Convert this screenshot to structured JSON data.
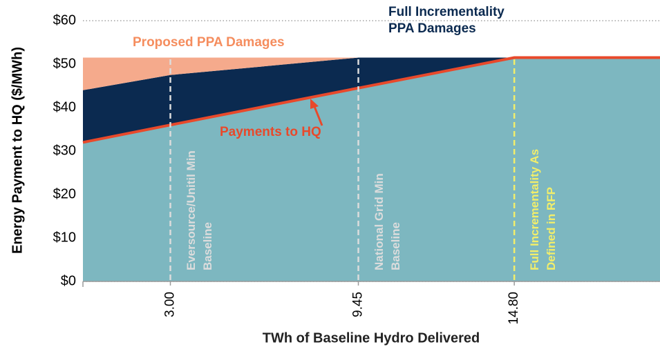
{
  "chart_data": {
    "type": "stacked_area",
    "x_label": "TWh of Baseline Hydro Delivered",
    "y_label": "Energy Payment to HQ ($/MWh)",
    "x": [
      0,
      3,
      9.45,
      14.8,
      19.8
    ],
    "xlim": [
      0,
      19.8
    ],
    "xticks": [
      {
        "value": 3,
        "label": "3.00"
      },
      {
        "value": 9.45,
        "label": "9.45"
      },
      {
        "value": 14.8,
        "label": "14.80"
      }
    ],
    "ylim": [
      0,
      60
    ],
    "yticks": [
      {
        "value": 0,
        "label": "$0"
      },
      {
        "value": 10,
        "label": "$10"
      },
      {
        "value": 20,
        "label": "$20"
      },
      {
        "value": 30,
        "label": "$30"
      },
      {
        "value": 40,
        "label": "$40"
      },
      {
        "value": 50,
        "label": "$50"
      },
      {
        "value": 60,
        "label": "$60"
      }
    ],
    "grid": true,
    "series": [
      {
        "name": "Payments to HQ",
        "color": "#7db7c0",
        "line_color": "#e8492b",
        "values": [
          32,
          36,
          44.5,
          51.5,
          51.5
        ]
      },
      {
        "name": "Full Incrementality PPA Damages",
        "color": "#0b2a50",
        "values": [
          12,
          11.5,
          7,
          0,
          0
        ]
      },
      {
        "name": "Proposed PPA Damages",
        "color": "#f5aa8c",
        "label_color": "#f58d5e",
        "values": [
          7.5,
          4,
          0,
          0,
          0
        ]
      }
    ],
    "reference_lines": [
      {
        "x": 3,
        "label": "Eversource/Unitil Min Baseline",
        "color": "#dcdcdc"
      },
      {
        "x": 9.45,
        "label": "National Grid Min Baseline",
        "color": "#dcdcdc"
      },
      {
        "x": 14.8,
        "label": "Full Incrementality As Defined in RFP",
        "color": "#f2ee6a"
      }
    ]
  }
}
